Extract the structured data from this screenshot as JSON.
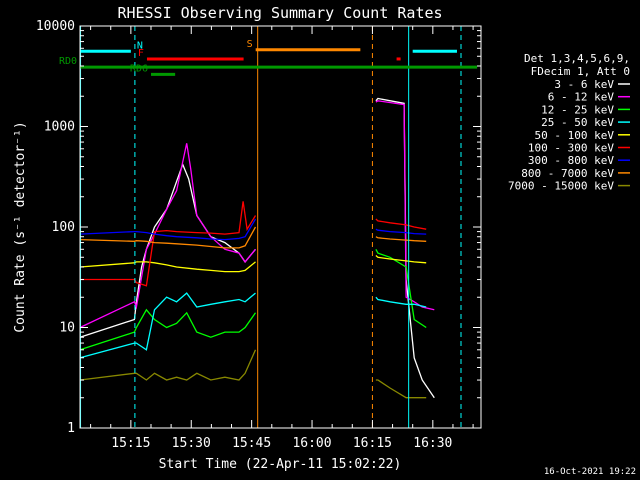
{
  "chart_data": {
    "type": "line",
    "title": "RHESSI Observing Summary Count Rates",
    "xlabel": "Start Time (22-Apr-11 15:02:22)",
    "ylabel": "Count Rate (s⁻¹ detector⁻¹)",
    "yscale": "log",
    "ylim": [
      1,
      10000
    ],
    "xlim": [
      "15:02:22",
      "16:42:00"
    ],
    "x_ticks": [
      "15:15",
      "15:30",
      "15:45",
      "16:00",
      "16:15",
      "16:30"
    ],
    "y_ticks": [
      "1",
      "10",
      "100",
      "1000",
      "10000"
    ],
    "legend": {
      "placement": "right",
      "header": [
        "Det 1,3,4,5,6,9,",
        "FDecim 1, Att 0"
      ],
      "entries": [
        {
          "name": "3 - 6 keV",
          "color": "#ffffff"
        },
        {
          "name": "6 - 12 keV",
          "color": "#ff00ff"
        },
        {
          "name": "12 - 25 keV",
          "color": "#00ff00"
        },
        {
          "name": "25 - 50 keV",
          "color": "#00ffff"
        },
        {
          "name": "50 - 100 keV",
          "color": "#ffff00"
        },
        {
          "name": "100 - 300 keV",
          "color": "#ff0000"
        },
        {
          "name": "300 - 800 keV",
          "color": "#0000ff"
        },
        {
          "name": "800 - 7000 keV",
          "color": "#ff8800"
        },
        {
          "name": "7000 - 15000 keV",
          "color": "#888800"
        }
      ]
    },
    "flag_bars": [
      {
        "label": "N",
        "color": "#00ffff",
        "segments": [
          [
            "15:02",
            "15:15"
          ],
          [
            "16:25",
            "16:36"
          ]
        ],
        "y": 5600
      },
      {
        "label": "F",
        "color": "#ff0000",
        "segments": [
          [
            "15:19",
            "15:43"
          ],
          [
            "16:21",
            "16:22"
          ]
        ],
        "y": 4700
      },
      {
        "label": "S",
        "color": "#ff8800",
        "segments": [
          [
            "15:46",
            "16:12"
          ]
        ],
        "y": 5800
      },
      {
        "label": "RD0",
        "color": "#009900",
        "segments": [
          [
            "15:02",
            "16:41"
          ]
        ],
        "y": 3900
      },
      {
        "label": "RD6",
        "color": "#009900",
        "segments": [
          [
            "15:20",
            "15:26"
          ]
        ],
        "y": 3300
      }
    ],
    "vlines": [
      {
        "time": "15:02:30",
        "color": "#00ffff",
        "style": "solid"
      },
      {
        "time": "15:16:00",
        "color": "#00ffff",
        "style": "dashed"
      },
      {
        "time": "15:46:30",
        "color": "#ff8800",
        "style": "solid"
      },
      {
        "time": "16:15:00",
        "color": "#ff8800",
        "style": "dashed"
      },
      {
        "time": "16:24:00",
        "color": "#00ffff",
        "style": "solid"
      },
      {
        "time": "16:37:00",
        "color": "#00ffff",
        "style": "dashed"
      }
    ],
    "series": [
      {
        "name": "3 - 6 keV",
        "color": "#ffffff",
        "segments": [
          {
            "t": [
              0,
              13.5,
              14.0,
              15.3,
              16.5,
              18.5,
              21.5,
              25.5,
              27.0,
              29.0,
              32.5,
              36.0,
              39.5,
              41.0,
              43.6
            ],
            "v": [
              8,
              12,
              18,
              40,
              60,
              100,
              150,
              420,
              300,
              130,
              80,
              70,
              55,
              45,
              60
            ]
          },
          {
            "t": [
              73.5,
              74.0,
              80.5,
              81.0,
              83.0,
              85.0,
              88.0
            ],
            "v": [
              1800,
              1900,
              1700,
              30,
              5,
              3,
              2
            ]
          }
        ]
      },
      {
        "name": "6 - 12 keV",
        "color": "#ff00ff",
        "segments": [
          {
            "t": [
              0,
              13.5,
              14.0,
              16.5,
              18.5,
              21.5,
              24.0,
              26.5,
              27.5,
              29.0,
              32.5,
              36.0,
              39.5,
              41.0,
              43.6
            ],
            "v": [
              10,
              18,
              16,
              60,
              85,
              150,
              230,
              680,
              380,
              130,
              80,
              60,
              55,
              45,
              60
            ]
          },
          {
            "t": [
              73.5,
              74.0,
              80.5,
              81.0,
              83.0,
              85.0,
              88.0
            ],
            "v": [
              1750,
              1800,
              1650,
              20,
              18,
              16,
              15
            ]
          }
        ]
      },
      {
        "name": "12 - 25 keV",
        "color": "#00ff00",
        "segments": [
          {
            "t": [
              0,
              13.5,
              14.0,
              16.5,
              18.5,
              21.5,
              24.0,
              26.5,
              29.0,
              32.5,
              36.0,
              39.5,
              41.0,
              43.6
            ],
            "v": [
              6,
              9,
              10,
              15,
              12,
              10,
              11,
              14,
              9,
              8,
              9,
              9,
              10,
              14
            ]
          },
          {
            "t": [
              73.5,
              74.0,
              77.0,
              81.0,
              83.0,
              86.0
            ],
            "v": [
              60,
              55,
              50,
              40,
              12,
              10
            ]
          }
        ]
      },
      {
        "name": "25 - 50 keV",
        "color": "#00ffff",
        "segments": [
          {
            "t": [
              0,
              13.5,
              14.0,
              16.5,
              18.5,
              21.5,
              24.0,
              26.5,
              29.0,
              32.5,
              36.0,
              39.5,
              41.0,
              43.6
            ],
            "v": [
              5,
              7,
              7,
              6,
              15,
              20,
              18,
              22,
              16,
              17,
              18,
              19,
              18,
              22
            ]
          },
          {
            "t": [
              73.5,
              74.0,
              77.0,
              81.0,
              83.0,
              86.0
            ],
            "v": [
              20,
              19,
              18,
              17,
              17,
              16
            ]
          }
        ]
      },
      {
        "name": "50 - 100 keV",
        "color": "#ffff00",
        "segments": [
          {
            "t": [
              0,
              13.5,
              14.0,
              16.5,
              18.5,
              21.5,
              24.0,
              29.0,
              32.5,
              36.0,
              39.5,
              41.0,
              43.6
            ],
            "v": [
              40,
              44,
              45,
              45,
              44,
              42,
              40,
              38,
              37,
              36,
              36,
              37,
              45
            ]
          },
          {
            "t": [
              73.5,
              74.0,
              77.0,
              81.0,
              83.0,
              86.0
            ],
            "v": [
              52,
              50,
              48,
              46,
              45,
              44
            ]
          }
        ]
      },
      {
        "name": "100 - 300 keV",
        "color": "#ff0000",
        "segments": [
          {
            "t": [
              0,
              13.5,
              14.0,
              16.5,
              18.5,
              21.5,
              24.0,
              29.0,
              32.5,
              36.0,
              39.5,
              40.5,
              41.5,
              43.6
            ],
            "v": [
              30,
              30,
              28,
              26,
              90,
              92,
              90,
              88,
              87,
              85,
              88,
              180,
              95,
              130
            ]
          },
          {
            "t": [
              73.5,
              74.0,
              77.0,
              81.0,
              83.0,
              86.0
            ],
            "v": [
              120,
              115,
              110,
              105,
              100,
              95
            ]
          }
        ]
      },
      {
        "name": "300 - 800 keV",
        "color": "#0000ff",
        "segments": [
          {
            "t": [
              0,
              13.5,
              14.0,
              16.5,
              18.5,
              21.5,
              24.0,
              29.0,
              32.5,
              36.0,
              39.5,
              41.0,
              43.6
            ],
            "v": [
              85,
              90,
              90,
              88,
              85,
              82,
              80,
              78,
              76,
              75,
              77,
              80,
              120
            ]
          },
          {
            "t": [
              73.5,
              74.0,
              77.0,
              81.0,
              83.0,
              86.0
            ],
            "v": [
              95,
              93,
              90,
              88,
              86,
              85
            ]
          }
        ]
      },
      {
        "name": "800 - 7000 keV",
        "color": "#ff8800",
        "segments": [
          {
            "t": [
              0,
              13.5,
              14.0,
              16.5,
              18.5,
              21.5,
              24.0,
              29.0,
              32.5,
              36.0,
              39.5,
              41.0,
              43.6
            ],
            "v": [
              75,
              72,
              73,
              72,
              70,
              69,
              68,
              66,
              64,
              62,
              62,
              65,
              100
            ]
          },
          {
            "t": [
              73.5,
              74.0,
              77.0,
              81.0,
              83.0,
              86.0
            ],
            "v": [
              80,
              78,
              76,
              74,
              73,
              72
            ]
          }
        ]
      },
      {
        "name": "7000 - 15000 keV",
        "color": "#888800",
        "segments": [
          {
            "t": [
              0,
              13.5,
              14.0,
              16.5,
              18.5,
              21.5,
              24.0,
              26.5,
              29.0,
              32.5,
              36.0,
              39.5,
              41.0,
              43.6
            ],
            "v": [
              3,
              3.5,
              3.5,
              3,
              3.5,
              3,
              3.2,
              3,
              3.5,
              3,
              3.2,
              3,
              3.5,
              6
            ]
          },
          {
            "t": [
              73.5,
              74.0,
              77.0,
              81.0,
              83.0,
              86.0
            ],
            "v": [
              3,
              3,
              2.5,
              2,
              2,
              2
            ]
          }
        ]
      }
    ],
    "x_time_origin_note": "t values are minutes after 15:02:22"
  },
  "footer": {
    "timestamp": "16-Oct-2021 19:22"
  }
}
